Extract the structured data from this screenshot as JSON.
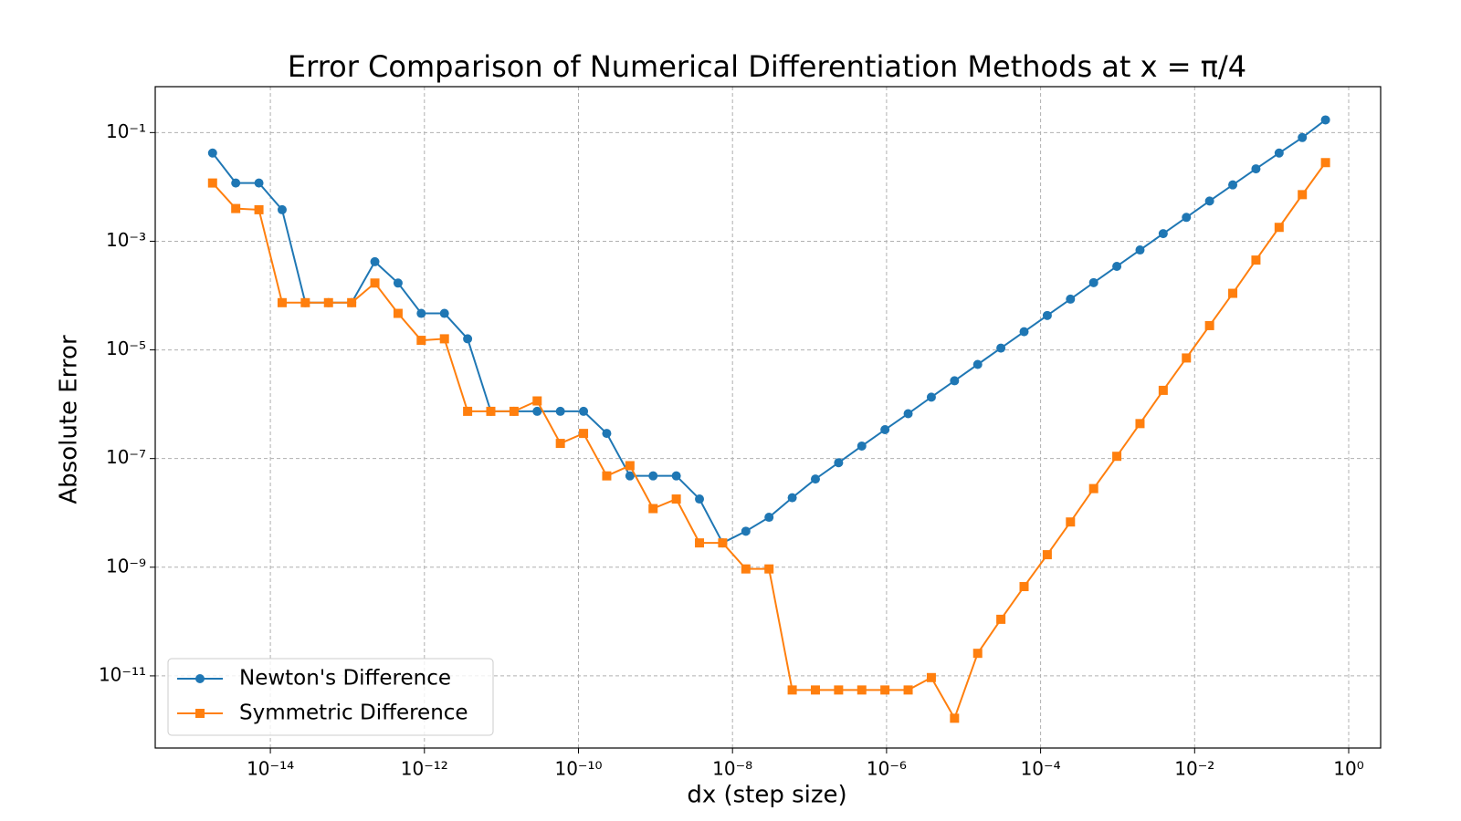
{
  "chart_data": {
    "type": "line",
    "title": "Error Comparison of Numerical Differentiation Methods at x = π/4",
    "x_label": "dx (step size)",
    "y_label": "Absolute Error",
    "x_scale": "log",
    "y_scale": "log",
    "grid": true,
    "legend": "lower left",
    "x": [
      1.7763568394002505e-15,
      3.552713678800501e-15,
      7.105427357601002e-15,
      1.4210854715202004e-14,
      2.842170943040401e-14,
      5.684341886080802e-14,
      1.1368683772161603e-13,
      2.2737367544323206e-13,
      4.547473508864641e-13,
      9.094947017729282e-13,
      1.8189894035458565e-12,
      3.637978807091713e-12,
      7.275957614183426e-12,
      1.4551915228366852e-11,
      2.9103830456733704e-11,
      5.820766091346741e-11,
      1.1641532182693481e-10,
      2.3283064365386963e-10,
      4.656612873077393e-10,
      9.313225746154785e-10,
      1.862645149230957e-09,
      3.725290298461914e-09,
      7.450580596923828e-09,
      1.4901161193847656e-08,
      2.9802322387695312e-08,
      5.960464477539063e-08,
      1.1920928955078125e-07,
      2.384185791015625e-07,
      4.76837158203125e-07,
      9.5367431640625e-07,
      1.9073486328125e-06,
      3.814697265625e-06,
      7.62939453125e-06,
      1.52587890625e-05,
      3.0517578125e-05,
      6.103515625e-05,
      0.0001220703125,
      0.000244140625,
      0.00048828125,
      0.0009765625,
      0.001953125,
      0.00390625,
      0.0078125,
      0.015625,
      0.03125,
      0.0625,
      0.125,
      0.25,
      0.5
    ],
    "series": [
      {
        "name": "Newton's Difference",
        "color": "#1f77b4",
        "marker": "circle",
        "values": [
          0.042,
          0.0118,
          0.0118,
          0.0038,
          7.4e-05,
          7.4e-05,
          7.4e-05,
          0.00042,
          0.00017,
          4.7e-05,
          4.7e-05,
          1.6e-05,
          7.4e-07,
          7.4e-07,
          7.4e-07,
          7.4e-07,
          7.4e-07,
          2.9e-07,
          4.8e-08,
          4.8e-08,
          4.8e-08,
          1.8e-08,
          2.8e-09,
          4.6e-09,
          8.3e-09,
          1.9e-08,
          4.2e-08,
          8.4e-08,
          1.7e-07,
          3.4e-07,
          6.7e-07,
          1.35e-06,
          2.7e-06,
          5.4e-06,
          1.08e-05,
          2.16e-05,
          4.3e-05,
          8.6e-05,
          0.000173,
          0.000345,
          0.00069,
          0.00138,
          0.00275,
          0.0055,
          0.0109,
          0.0215,
          0.042,
          0.081,
          0.171
        ]
      },
      {
        "name": "Symmetric Difference",
        "color": "#ff7f0e",
        "marker": "square",
        "values": [
          0.0118,
          0.004,
          0.0038,
          7.4e-05,
          7.4e-05,
          7.4e-05,
          7.4e-05,
          0.00017,
          4.7e-05,
          1.5e-05,
          1.6e-05,
          7.4e-07,
          7.4e-07,
          7.4e-07,
          1.15e-06,
          1.9e-07,
          2.9e-07,
          4.8e-08,
          7.4e-08,
          1.2e-08,
          1.8e-08,
          2.8e-09,
          2.8e-09,
          9.3e-10,
          9.3e-10,
          5.5e-12,
          5.5e-12,
          5.5e-12,
          5.5e-12,
          5.5e-12,
          5.5e-12,
          9.3e-12,
          1.66e-12,
          2.6e-11,
          1.1e-10,
          4.4e-10,
          1.7e-09,
          6.8e-09,
          2.8e-08,
          1.1e-07,
          4.4e-07,
          1.8e-06,
          7.1e-06,
          2.8e-05,
          0.00011,
          0.00045,
          0.0018,
          0.0072,
          0.028
        ]
      }
    ],
    "xlim": [
      3.2e-16,
      2.6
    ],
    "ylim": [
      4.7e-13,
      0.7
    ],
    "xticks": [
      {
        "value": 1e-14,
        "label": "10⁻¹⁴"
      },
      {
        "value": 1e-12,
        "label": "10⁻¹²"
      },
      {
        "value": 1e-10,
        "label": "10⁻¹⁰"
      },
      {
        "value": 1e-08,
        "label": "10⁻⁸"
      },
      {
        "value": 1e-06,
        "label": "10⁻⁶"
      },
      {
        "value": 0.0001,
        "label": "10⁻⁴"
      },
      {
        "value": 0.01,
        "label": "10⁻²"
      },
      {
        "value": 1,
        "label": "10⁰"
      }
    ],
    "yticks": [
      {
        "value": 1e-11,
        "label": "10⁻¹¹"
      },
      {
        "value": 1e-09,
        "label": "10⁻⁹"
      },
      {
        "value": 1e-07,
        "label": "10⁻⁷"
      },
      {
        "value": 1e-05,
        "label": "10⁻⁵"
      },
      {
        "value": 0.001,
        "label": "10⁻³"
      },
      {
        "value": 0.1,
        "label": "10⁻¹"
      }
    ]
  }
}
